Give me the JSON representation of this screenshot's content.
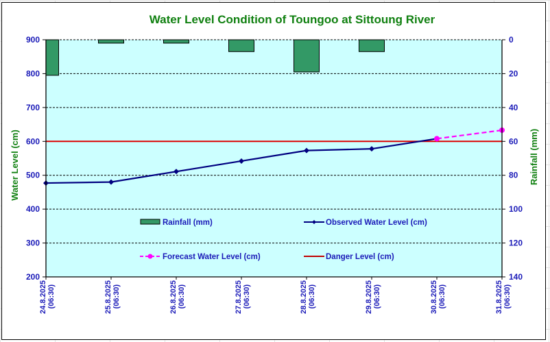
{
  "chart_data": {
    "type": "bar+line",
    "title": "Water Level Condition of Toungoo at  Sittoung River",
    "categories": [
      "24.8.2025 (06:30)",
      "25.8.2025 (06:30)",
      "26.8.2025 (06:30)",
      "27.8.2025 (06:30)",
      "28.8.2025 (06:30)",
      "29.8.2025 (06:30)",
      "30.8.2025 (06:30)",
      "31.8.2025 (06:30)"
    ],
    "category_lines": [
      [
        "24.8.2025",
        "(06:30)"
      ],
      [
        "25.8.2025",
        "(06:30)"
      ],
      [
        "26.8.2025",
        "(06:30)"
      ],
      [
        "27.8.2025",
        "(06:30)"
      ],
      [
        "28.8.2025",
        "(06:30)"
      ],
      [
        "29.8.2025",
        "(06:30)"
      ],
      [
        "30.8.2025",
        "(06:30)"
      ],
      [
        "31.8.2025",
        "(06:30)"
      ]
    ],
    "ylabel_left": "Water Level (cm)",
    "ylabel_right": "Rainfall (mm)",
    "ylim_left": [
      200,
      900
    ],
    "yticks_left": [
      900,
      800,
      700,
      600,
      500,
      400,
      300,
      200
    ],
    "ylim_right": [
      0,
      140
    ],
    "yticks_right": [
      0,
      20,
      40,
      60,
      80,
      100,
      120,
      140
    ],
    "right_axis_inverted": true,
    "grid": true,
    "series": [
      {
        "name": "Rainfall (mm)",
        "type": "bar",
        "axis": "right",
        "color": "#339966",
        "values": [
          21,
          2,
          2,
          7,
          19,
          7,
          null,
          null
        ]
      },
      {
        "name": "Observed Water Level (cm)",
        "type": "line",
        "axis": "left",
        "color": "#000080",
        "marker": "diamond",
        "values": [
          477,
          480,
          511,
          542,
          573,
          578,
          608,
          null
        ]
      },
      {
        "name": "Forecast Water Level (cm)",
        "type": "line",
        "axis": "left",
        "color": "#ff00ff",
        "marker": "circle",
        "dashed": true,
        "values": [
          null,
          null,
          null,
          null,
          null,
          null,
          608,
          633
        ]
      },
      {
        "name": "Danger Level (cm)",
        "type": "line",
        "axis": "left",
        "color": "#dd0000",
        "values": [
          600,
          600,
          600,
          600,
          600,
          600,
          600,
          600
        ]
      }
    ],
    "legend_placement": "inside-center",
    "colors": {
      "plot_bg": "#ccffff",
      "tick_text": "#1a1ab8",
      "label_text": "#108010"
    }
  }
}
